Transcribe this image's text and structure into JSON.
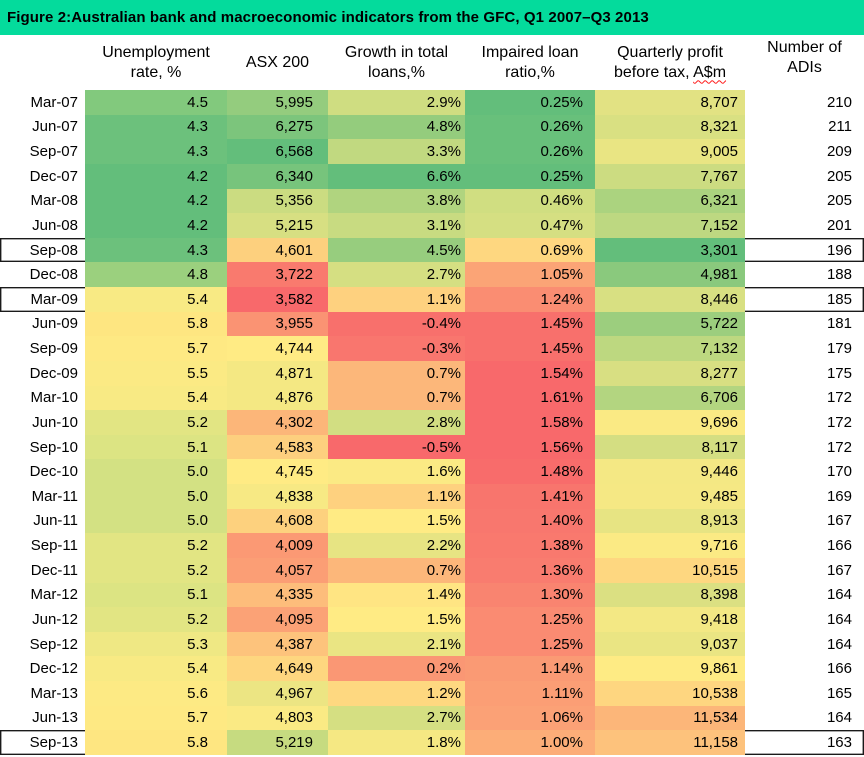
{
  "title": "Figure 2:Australian bank and macroeconomic indicators from the GFC, Q1 2007–Q3 2013",
  "colors": {
    "title_bar_bg": "#04DB9C",
    "box_border": "#1a1a1a",
    "squiggle": "#FF1A1A",
    "heatmap_low_red": "#F8696B",
    "heatmap_mid_yellow": "#FFEB84",
    "heatmap_high_green": "#63BE7B"
  },
  "header": {
    "quarter": [
      "",
      ""
    ],
    "unemployment": [
      "Unemployment",
      "rate, %"
    ],
    "asx": [
      "ASX 200"
    ],
    "growth": [
      "Growth in total",
      "loans,%"
    ],
    "impaired": [
      "Impaired loan",
      "ratio,%"
    ],
    "profit_line1": "Quarterly profit",
    "profit_line2_prefix": "before tax, ",
    "profit_line2_word": "A$m",
    "adis": [
      "Number of",
      "ADIs"
    ]
  },
  "chart_data": {
    "type": "heatmap",
    "title": "Figure 2:Australian bank and macroeconomic indicators from the GFC, Q1 2007–Q3 2013",
    "categories": [
      "Mar-07",
      "Jun-07",
      "Sep-07",
      "Dec-07",
      "Mar-08",
      "Jun-08",
      "Sep-08",
      "Dec-08",
      "Mar-09",
      "Jun-09",
      "Sep-09",
      "Dec-09",
      "Mar-10",
      "Jun-10",
      "Sep-10",
      "Dec-10",
      "Mar-11",
      "Jun-11",
      "Sep-11",
      "Dec-11",
      "Mar-12",
      "Jun-12",
      "Sep-12",
      "Dec-12",
      "Mar-13",
      "Jun-13",
      "Sep-13"
    ],
    "series": [
      {
        "name": "Unemployment rate, %",
        "values": [
          4.5,
          4.3,
          4.3,
          4.2,
          4.2,
          4.2,
          4.3,
          4.8,
          5.4,
          5.8,
          5.7,
          5.5,
          5.4,
          5.2,
          5.1,
          5.0,
          5.0,
          5.0,
          5.2,
          5.2,
          5.1,
          5.2,
          5.3,
          5.4,
          5.6,
          5.7,
          5.8
        ]
      },
      {
        "name": "ASX 200",
        "values": [
          5995,
          6275,
          6568,
          6340,
          5356,
          5215,
          4601,
          3722,
          3582,
          3955,
          4744,
          4871,
          4876,
          4302,
          4583,
          4745,
          4838,
          4608,
          4009,
          4057,
          4335,
          4095,
          4387,
          4649,
          4967,
          4803,
          5219
        ]
      },
      {
        "name": "Growth in total loans,%",
        "values": [
          2.9,
          4.8,
          3.3,
          6.6,
          3.8,
          3.1,
          4.5,
          2.7,
          1.1,
          -0.4,
          -0.3,
          0.7,
          0.7,
          2.8,
          -0.5,
          1.6,
          1.1,
          1.5,
          2.2,
          0.7,
          1.4,
          1.5,
          2.1,
          0.2,
          1.2,
          2.7,
          1.8
        ]
      },
      {
        "name": "Impaired loan ratio,%",
        "values": [
          0.25,
          0.26,
          0.26,
          0.25,
          0.46,
          0.47,
          0.69,
          1.05,
          1.24,
          1.45,
          1.45,
          1.54,
          1.61,
          1.58,
          1.56,
          1.48,
          1.41,
          1.4,
          1.38,
          1.36,
          1.3,
          1.25,
          1.25,
          1.14,
          1.11,
          1.06,
          1.0
        ]
      },
      {
        "name": "Quarterly profit before tax, A$m",
        "values": [
          8707,
          8321,
          9005,
          7767,
          6321,
          7152,
          3301,
          4981,
          8446,
          5722,
          7132,
          8277,
          6706,
          9696,
          8117,
          9446,
          9485,
          8913,
          9716,
          10515,
          8398,
          9418,
          9037,
          9861,
          10538,
          11534,
          11158
        ]
      },
      {
        "name": "Number of ADIs",
        "values": [
          210,
          211,
          209,
          205,
          205,
          201,
          196,
          188,
          185,
          181,
          179,
          175,
          172,
          172,
          172,
          170,
          169,
          167,
          166,
          167,
          164,
          164,
          164,
          166,
          165,
          164,
          163
        ]
      }
    ],
    "highlighted_rows": [
      "Sep-08",
      "Mar-09",
      "Sep-13"
    ],
    "legend_position": "none",
    "grid": false
  },
  "table": {
    "rows": [
      {
        "label": "Mar-07",
        "boxed": false,
        "cells": [
          {
            "v": "4.5",
            "c": "#82C97D"
          },
          {
            "v": "5,995",
            "c": "#94CC7E"
          },
          {
            "v": "2.9%",
            "c": "#CFDD81"
          },
          {
            "v": "0.25%",
            "c": "#63BE7B"
          },
          {
            "v": "8,707",
            "c": "#E2E283"
          },
          {
            "v": "210",
            "c": ""
          }
        ]
      },
      {
        "label": "Jun-07",
        "boxed": false,
        "cells": [
          {
            "v": "4.3",
            "c": "#6CC17C"
          },
          {
            "v": "6,275",
            "c": "#7CC57C"
          },
          {
            "v": "4.8%",
            "c": "#94CC7D"
          },
          {
            "v": "0.26%",
            "c": "#68C07B"
          },
          {
            "v": "8,321",
            "c": "#D9E082"
          },
          {
            "v": "211",
            "c": ""
          }
        ]
      },
      {
        "label": "Sep-07",
        "boxed": false,
        "cells": [
          {
            "v": "4.3",
            "c": "#6CC17C"
          },
          {
            "v": "6,568",
            "c": "#63BE7B"
          },
          {
            "v": "3.3%",
            "c": "#C1D980"
          },
          {
            "v": "0.26%",
            "c": "#68C07B"
          },
          {
            "v": "9,005",
            "c": "#E9E583"
          },
          {
            "v": "209",
            "c": ""
          }
        ]
      },
      {
        "label": "Dec-07",
        "boxed": false,
        "cells": [
          {
            "v": "4.2",
            "c": "#63BE7B"
          },
          {
            "v": "6,340",
            "c": "#77C47C"
          },
          {
            "v": "6.6%",
            "c": "#63BE7B"
          },
          {
            "v": "0.25%",
            "c": "#63BE7B"
          },
          {
            "v": "7,767",
            "c": "#CCDC81"
          },
          {
            "v": "205",
            "c": ""
          }
        ]
      },
      {
        "label": "Mar-08",
        "boxed": false,
        "cells": [
          {
            "v": "4.2",
            "c": "#63BE7B"
          },
          {
            "v": "5,356",
            "c": "#CBDC81"
          },
          {
            "v": "3.8%",
            "c": "#B0D47F"
          },
          {
            "v": "0.46%",
            "c": "#D0DE81"
          },
          {
            "v": "6,321",
            "c": "#ABD37F"
          },
          {
            "v": "205",
            "c": ""
          }
        ]
      },
      {
        "label": "Jun-08",
        "boxed": false,
        "cells": [
          {
            "v": "4.2",
            "c": "#63BE7B"
          },
          {
            "v": "5,215",
            "c": "#D7DF82"
          },
          {
            "v": "3.1%",
            "c": "#C8DB81"
          },
          {
            "v": "0.47%",
            "c": "#D5DF82"
          },
          {
            "v": "7,152",
            "c": "#BDD881"
          },
          {
            "v": "201",
            "c": ""
          }
        ]
      },
      {
        "label": "Sep-08",
        "boxed": true,
        "cells": [
          {
            "v": "4.3",
            "c": "#6CC17C"
          },
          {
            "v": "4,601",
            "c": "#FDD07E"
          },
          {
            "v": "4.5%",
            "c": "#97CD7E"
          },
          {
            "v": "0.69%",
            "c": "#FED780"
          },
          {
            "v": "3,301",
            "c": "#63BE7B"
          },
          {
            "v": "196",
            "c": ""
          }
        ]
      },
      {
        "label": "Dec-08",
        "boxed": false,
        "cells": [
          {
            "v": "4.8",
            "c": "#9BD07E"
          },
          {
            "v": "3,722",
            "c": "#F97A6E"
          },
          {
            "v": "2.7%",
            "c": "#D5DF82"
          },
          {
            "v": "1.05%",
            "c": "#FBA476"
          },
          {
            "v": "4,981",
            "c": "#8AC97D"
          },
          {
            "v": "188",
            "c": ""
          }
        ]
      },
      {
        "label": "Mar-09",
        "boxed": true,
        "cells": [
          {
            "v": "5.4",
            "c": "#F8EA84"
          },
          {
            "v": "3,582",
            "c": "#F8696B"
          },
          {
            "v": "1.1%",
            "c": "#FED17F"
          },
          {
            "v": "1.24%",
            "c": "#FA8D72"
          },
          {
            "v": "8,446",
            "c": "#D8E082"
          },
          {
            "v": "185",
            "c": ""
          }
        ]
      },
      {
        "label": "Jun-09",
        "boxed": false,
        "cells": [
          {
            "v": "5.8",
            "c": "#FEE681"
          },
          {
            "v": "3,955",
            "c": "#FA9373"
          },
          {
            "v": "-0.4%",
            "c": "#F8706C"
          },
          {
            "v": "1.45%",
            "c": "#F8706C"
          },
          {
            "v": "5,722",
            "c": "#9CCE7E"
          },
          {
            "v": "181",
            "c": ""
          }
        ]
      },
      {
        "label": "Sep-09",
        "boxed": false,
        "cells": [
          {
            "v": "5.7",
            "c": "#FEE983"
          },
          {
            "v": "4,744",
            "c": "#FFEB84"
          },
          {
            "v": "-0.3%",
            "c": "#F9766E"
          },
          {
            "v": "1.45%",
            "c": "#F8706C"
          },
          {
            "v": "7,132",
            "c": "#BDD880"
          },
          {
            "v": "179",
            "c": ""
          }
        ]
      },
      {
        "label": "Dec-09",
        "boxed": false,
        "cells": [
          {
            "v": "5.5",
            "c": "#FBEA84"
          },
          {
            "v": "4,871",
            "c": "#F4E883"
          },
          {
            "v": "0.7%",
            "c": "#FCB77A"
          },
          {
            "v": "1.54%",
            "c": "#F8696B"
          },
          {
            "v": "8,277",
            "c": "#D8DF82"
          },
          {
            "v": "175",
            "c": ""
          }
        ]
      },
      {
        "label": "Mar-10",
        "boxed": false,
        "cells": [
          {
            "v": "5.4",
            "c": "#F8EA84"
          },
          {
            "v": "4,876",
            "c": "#F4E883"
          },
          {
            "v": "0.7%",
            "c": "#FCB77A"
          },
          {
            "v": "1.61%",
            "c": "#F8696B"
          },
          {
            "v": "6,706",
            "c": "#B3D580"
          },
          {
            "v": "172",
            "c": ""
          }
        ]
      },
      {
        "label": "Jun-10",
        "boxed": false,
        "cells": [
          {
            "v": "5.2",
            "c": "#E2E583"
          },
          {
            "v": "4,302",
            "c": "#FCB679"
          },
          {
            "v": "2.8%",
            "c": "#D2DE82"
          },
          {
            "v": "1.58%",
            "c": "#F8696B"
          },
          {
            "v": "9,696",
            "c": "#FAEA84"
          },
          {
            "v": "172",
            "c": ""
          }
        ]
      },
      {
        "label": "Sep-10",
        "boxed": false,
        "cells": [
          {
            "v": "5.1",
            "c": "#DCE483"
          },
          {
            "v": "4,583",
            "c": "#FDCF7E"
          },
          {
            "v": "-0.5%",
            "c": "#F8696B"
          },
          {
            "v": "1.56%",
            "c": "#F8696B"
          },
          {
            "v": "8,117",
            "c": "#D4DE82"
          },
          {
            "v": "172",
            "c": ""
          }
        ]
      },
      {
        "label": "Dec-10",
        "boxed": false,
        "cells": [
          {
            "v": "5.0",
            "c": "#D3E183"
          },
          {
            "v": "4,745",
            "c": "#FFEB84"
          },
          {
            "v": "1.6%",
            "c": "#FBEA84"
          },
          {
            "v": "1.48%",
            "c": "#F86C6B"
          },
          {
            "v": "9,446",
            "c": "#F4E884"
          },
          {
            "v": "170",
            "c": ""
          }
        ]
      },
      {
        "label": "Mar-11",
        "boxed": false,
        "cells": [
          {
            "v": "5.0",
            "c": "#D3E183"
          },
          {
            "v": "4,838",
            "c": "#F7E984"
          },
          {
            "v": "1.1%",
            "c": "#FED17F"
          },
          {
            "v": "1.41%",
            "c": "#F8756D"
          },
          {
            "v": "9,485",
            "c": "#F5E884"
          },
          {
            "v": "169",
            "c": ""
          }
        ]
      },
      {
        "label": "Jun-11",
        "boxed": false,
        "cells": [
          {
            "v": "5.0",
            "c": "#D3E183"
          },
          {
            "v": "4,608",
            "c": "#FDD17E"
          },
          {
            "v": "1.5%",
            "c": "#FFEB84"
          },
          {
            "v": "1.40%",
            "c": "#F8776E"
          },
          {
            "v": "8,913",
            "c": "#E7E483"
          },
          {
            "v": "167",
            "c": ""
          }
        ]
      },
      {
        "label": "Sep-11",
        "boxed": false,
        "cells": [
          {
            "v": "5.2",
            "c": "#E2E583"
          },
          {
            "v": "4,009",
            "c": "#FB9974"
          },
          {
            "v": "2.2%",
            "c": "#E7E483"
          },
          {
            "v": "1.38%",
            "c": "#F9796E"
          },
          {
            "v": "9,716",
            "c": "#FBEA84"
          },
          {
            "v": "166",
            "c": ""
          }
        ]
      },
      {
        "label": "Dec-11",
        "boxed": false,
        "cells": [
          {
            "v": "5.2",
            "c": "#E2E583"
          },
          {
            "v": "4,057",
            "c": "#FB9E75"
          },
          {
            "v": "0.7%",
            "c": "#FCB77A"
          },
          {
            "v": "1.36%",
            "c": "#F97C6F"
          },
          {
            "v": "10,515",
            "c": "#FED780"
          },
          {
            "v": "167",
            "c": ""
          }
        ]
      },
      {
        "label": "Mar-12",
        "boxed": false,
        "cells": [
          {
            "v": "5.1",
            "c": "#DCE483"
          },
          {
            "v": "4,335",
            "c": "#FDBD7B"
          },
          {
            "v": "1.4%",
            "c": "#FFE583"
          },
          {
            "v": "1.30%",
            "c": "#F98470"
          },
          {
            "v": "8,398",
            "c": "#DBE082"
          },
          {
            "v": "164",
            "c": ""
          }
        ]
      },
      {
        "label": "Jun-12",
        "boxed": false,
        "cells": [
          {
            "v": "5.2",
            "c": "#E2E583"
          },
          {
            "v": "4,095",
            "c": "#FBA276"
          },
          {
            "v": "1.5%",
            "c": "#FFEB84"
          },
          {
            "v": "1.25%",
            "c": "#FA8B72"
          },
          {
            "v": "9,418",
            "c": "#F3E884"
          },
          {
            "v": "164",
            "c": ""
          }
        ]
      },
      {
        "label": "Sep-12",
        "boxed": false,
        "cells": [
          {
            "v": "5.3",
            "c": "#EFE884"
          },
          {
            "v": "4,387",
            "c": "#FDC37C"
          },
          {
            "v": "2.1%",
            "c": "#EAE583"
          },
          {
            "v": "1.25%",
            "c": "#FA8B72"
          },
          {
            "v": "9,037",
            "c": "#EAE583"
          },
          {
            "v": "164",
            "c": ""
          }
        ]
      },
      {
        "label": "Dec-12",
        "boxed": false,
        "cells": [
          {
            "v": "5.4",
            "c": "#F8EA84"
          },
          {
            "v": "4,649",
            "c": "#FED67F"
          },
          {
            "v": "0.2%",
            "c": "#FA9774"
          },
          {
            "v": "1.14%",
            "c": "#FA9A74"
          },
          {
            "v": "9,861",
            "c": "#FEEB84"
          },
          {
            "v": "166",
            "c": ""
          }
        ]
      },
      {
        "label": "Mar-13",
        "boxed": false,
        "cells": [
          {
            "v": "5.6",
            "c": "#FDEA84"
          },
          {
            "v": "4,967",
            "c": "#ECE583"
          },
          {
            "v": "1.2%",
            "c": "#FED880"
          },
          {
            "v": "1.11%",
            "c": "#FB9E75"
          },
          {
            "v": "10,538",
            "c": "#FED680"
          },
          {
            "v": "165",
            "c": ""
          }
        ]
      },
      {
        "label": "Jun-13",
        "boxed": false,
        "cells": [
          {
            "v": "5.7",
            "c": "#FEE983"
          },
          {
            "v": "4,803",
            "c": "#FAEA84"
          },
          {
            "v": "2.7%",
            "c": "#D5DF82"
          },
          {
            "v": "1.06%",
            "c": "#FBA176"
          },
          {
            "v": "11,534",
            "c": "#FCB679"
          },
          {
            "v": "164",
            "c": ""
          }
        ]
      },
      {
        "label": "Sep-13",
        "boxed": true,
        "cells": [
          {
            "v": "5.8",
            "c": "#FEE681"
          },
          {
            "v": "5,219",
            "c": "#C6DB80"
          },
          {
            "v": "1.8%",
            "c": "#F5E883"
          },
          {
            "v": "1.00%",
            "c": "#FCAD78"
          },
          {
            "v": "11,158",
            "c": "#FDC27C"
          },
          {
            "v": "163",
            "c": ""
          }
        ]
      }
    ]
  }
}
